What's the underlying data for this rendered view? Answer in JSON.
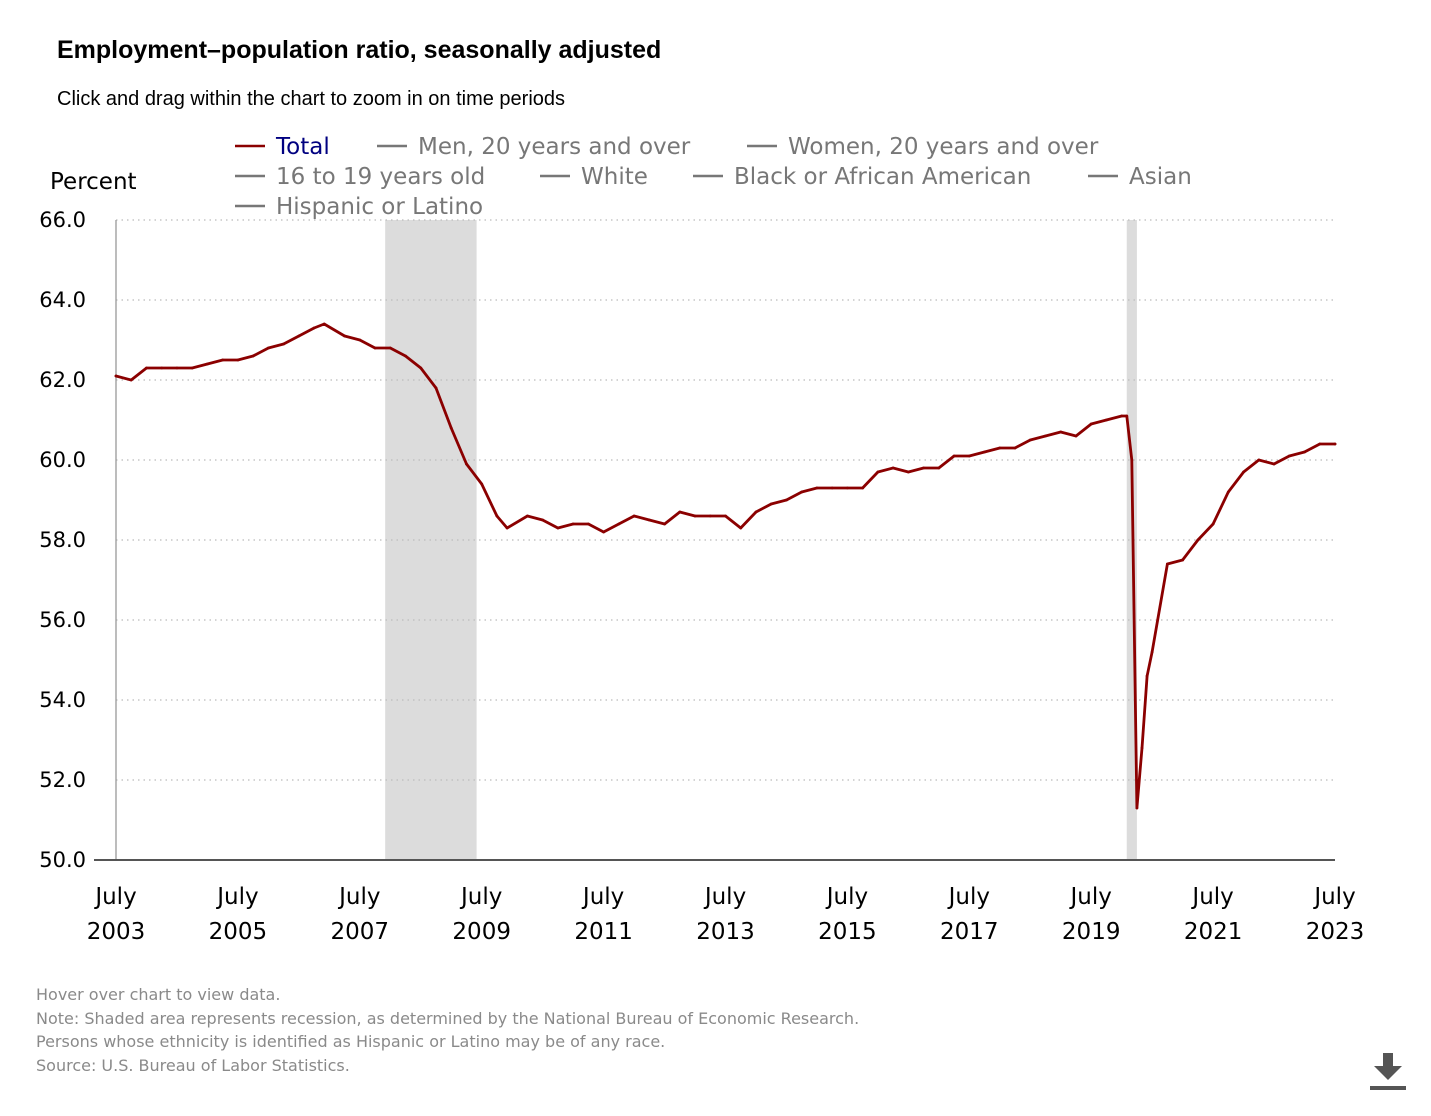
{
  "header": {
    "title": "Employment–population ratio, seasonally adjusted",
    "subtitle": "Click and drag within the chart to zoom in on time periods"
  },
  "notes": [
    "Hover over chart to view data.",
    "Note: Shaded area represents recession, as determined by the National Bureau of Economic Research.",
    "Persons whose ethnicity is identified as Hispanic or Latino may be of any race.",
    "Source: U.S. Bureau of Labor Statistics."
  ],
  "download_icon": "download-icon",
  "colors": {
    "total_line": "#8b0000",
    "inactive_legend": "#777777",
    "active_legend_text": "#000080",
    "recession_shade": "#dcdcdc",
    "grid": "#bbbbbb"
  },
  "chart_data": {
    "type": "line",
    "title": "Employment–population ratio, seasonally adjusted",
    "ylabel": "Percent",
    "xlabel": "",
    "ylim": [
      50.0,
      66.0
    ],
    "xlim": [
      "2003-07",
      "2023-07"
    ],
    "y_ticks": [
      "50.0",
      "52.0",
      "54.0",
      "56.0",
      "58.0",
      "60.0",
      "62.0",
      "64.0",
      "66.0"
    ],
    "x_ticks": [
      {
        "date": "2003-07",
        "line1": "July",
        "line2": "2003"
      },
      {
        "date": "2005-07",
        "line1": "July",
        "line2": "2005"
      },
      {
        "date": "2007-07",
        "line1": "July",
        "line2": "2007"
      },
      {
        "date": "2009-07",
        "line1": "July",
        "line2": "2009"
      },
      {
        "date": "2011-07",
        "line1": "July",
        "line2": "2011"
      },
      {
        "date": "2013-07",
        "line1": "July",
        "line2": "2013"
      },
      {
        "date": "2015-07",
        "line1": "July",
        "line2": "2015"
      },
      {
        "date": "2017-07",
        "line1": "July",
        "line2": "2017"
      },
      {
        "date": "2019-07",
        "line1": "July",
        "line2": "2019"
      },
      {
        "date": "2021-07",
        "line1": "July",
        "line2": "2021"
      },
      {
        "date": "2023-07",
        "line1": "July",
        "line2": "2023"
      }
    ],
    "grid": true,
    "legend_placement": "top",
    "legend": [
      {
        "name": "Total",
        "active": true
      },
      {
        "name": "Men, 20 years and over",
        "active": false
      },
      {
        "name": "Women, 20 years and over",
        "active": false
      },
      {
        "name": "16 to 19 years old",
        "active": false
      },
      {
        "name": "White",
        "active": false
      },
      {
        "name": "Black or African American",
        "active": false
      },
      {
        "name": "Asian",
        "active": false
      },
      {
        "name": "Hispanic or Latino",
        "active": false
      }
    ],
    "recessions": [
      {
        "start": "2007-12",
        "end": "2009-06"
      },
      {
        "start": "2020-02",
        "end": "2020-04"
      }
    ],
    "series": [
      {
        "name": "Total",
        "points": [
          [
            "2003-07",
            62.1
          ],
          [
            "2003-10",
            62.0
          ],
          [
            "2004-01",
            62.3
          ],
          [
            "2004-04",
            62.3
          ],
          [
            "2004-07",
            62.3
          ],
          [
            "2004-10",
            62.3
          ],
          [
            "2005-01",
            62.4
          ],
          [
            "2005-04",
            62.5
          ],
          [
            "2005-07",
            62.5
          ],
          [
            "2005-10",
            62.6
          ],
          [
            "2006-01",
            62.8
          ],
          [
            "2006-04",
            62.9
          ],
          [
            "2006-07",
            63.1
          ],
          [
            "2006-10",
            63.3
          ],
          [
            "2006-12",
            63.4
          ],
          [
            "2007-04",
            63.1
          ],
          [
            "2007-07",
            63.0
          ],
          [
            "2007-10",
            62.8
          ],
          [
            "2008-01",
            62.8
          ],
          [
            "2008-04",
            62.6
          ],
          [
            "2008-07",
            62.3
          ],
          [
            "2008-10",
            61.8
          ],
          [
            "2009-01",
            60.8
          ],
          [
            "2009-04",
            59.9
          ],
          [
            "2009-07",
            59.4
          ],
          [
            "2009-10",
            58.6
          ],
          [
            "2009-12",
            58.3
          ],
          [
            "2010-04",
            58.6
          ],
          [
            "2010-07",
            58.5
          ],
          [
            "2010-10",
            58.3
          ],
          [
            "2011-01",
            58.4
          ],
          [
            "2011-04",
            58.4
          ],
          [
            "2011-07",
            58.2
          ],
          [
            "2011-10",
            58.4
          ],
          [
            "2012-01",
            58.6
          ],
          [
            "2012-04",
            58.5
          ],
          [
            "2012-07",
            58.4
          ],
          [
            "2012-10",
            58.7
          ],
          [
            "2013-01",
            58.6
          ],
          [
            "2013-04",
            58.6
          ],
          [
            "2013-07",
            58.6
          ],
          [
            "2013-10",
            58.3
          ],
          [
            "2014-01",
            58.7
          ],
          [
            "2014-04",
            58.9
          ],
          [
            "2014-07",
            59.0
          ],
          [
            "2014-10",
            59.2
          ],
          [
            "2015-01",
            59.3
          ],
          [
            "2015-04",
            59.3
          ],
          [
            "2015-07",
            59.3
          ],
          [
            "2015-10",
            59.3
          ],
          [
            "2016-01",
            59.7
          ],
          [
            "2016-04",
            59.8
          ],
          [
            "2016-07",
            59.7
          ],
          [
            "2016-10",
            59.8
          ],
          [
            "2017-01",
            59.8
          ],
          [
            "2017-04",
            60.1
          ],
          [
            "2017-07",
            60.1
          ],
          [
            "2017-10",
            60.2
          ],
          [
            "2018-01",
            60.3
          ],
          [
            "2018-04",
            60.3
          ],
          [
            "2018-07",
            60.5
          ],
          [
            "2018-10",
            60.6
          ],
          [
            "2019-01",
            60.7
          ],
          [
            "2019-04",
            60.6
          ],
          [
            "2019-07",
            60.9
          ],
          [
            "2019-10",
            61.0
          ],
          [
            "2020-01",
            61.1
          ],
          [
            "2020-02",
            61.1
          ],
          [
            "2020-03",
            60.0
          ],
          [
            "2020-04",
            51.3
          ],
          [
            "2020-05",
            52.8
          ],
          [
            "2020-06",
            54.6
          ],
          [
            "2020-07",
            55.2
          ],
          [
            "2020-10",
            57.4
          ],
          [
            "2021-01",
            57.5
          ],
          [
            "2021-04",
            58.0
          ],
          [
            "2021-07",
            58.4
          ],
          [
            "2021-10",
            59.2
          ],
          [
            "2022-01",
            59.7
          ],
          [
            "2022-04",
            60.0
          ],
          [
            "2022-07",
            59.9
          ],
          [
            "2022-10",
            60.1
          ],
          [
            "2023-01",
            60.2
          ],
          [
            "2023-04",
            60.4
          ],
          [
            "2023-07",
            60.4
          ]
        ]
      }
    ]
  }
}
